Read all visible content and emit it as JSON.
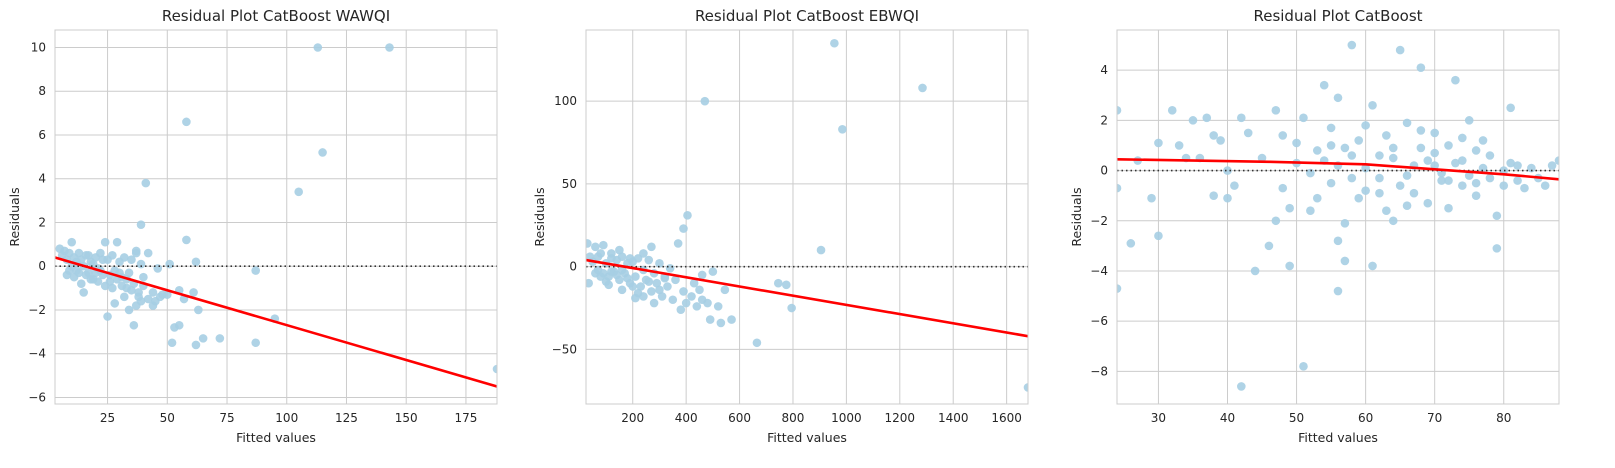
{
  "chart_data": [
    {
      "type": "scatter",
      "title": "Residual Plot CatBoost WAWQI",
      "xlabel": "Fitted values",
      "ylabel": "Residuals",
      "xlim": [
        3,
        188
      ],
      "ylim": [
        -6.3,
        10.8
      ],
      "xticks": [
        25,
        50,
        75,
        100,
        125,
        150,
        175
      ],
      "yticks": [
        -6,
        -4,
        -2,
        0,
        2,
        4,
        6,
        8,
        10
      ],
      "grid": true,
      "point_color": "#a6cee3",
      "fit_color": "#ff0000",
      "zero_line": 0,
      "fit_line": [
        [
          3,
          0.4
        ],
        [
          188,
          -5.5
        ]
      ],
      "points": [
        [
          5,
          0.8
        ],
        [
          6,
          0.5
        ],
        [
          7,
          0.7
        ],
        [
          8,
          0.3
        ],
        [
          9,
          0.6
        ],
        [
          10,
          1.1
        ],
        [
          11,
          0.4
        ],
        [
          12,
          -0.2
        ],
        [
          13,
          0.6
        ],
        [
          14,
          0.3
        ],
        [
          15,
          0.0
        ],
        [
          16,
          0.5
        ],
        [
          17,
          -0.3
        ],
        [
          18,
          0.2
        ],
        [
          19,
          -0.6
        ],
        [
          20,
          0.4
        ],
        [
          21,
          -0.1
        ],
        [
          22,
          0.6
        ],
        [
          23,
          -0.4
        ],
        [
          24,
          1.1
        ],
        [
          25,
          0.3
        ],
        [
          26,
          -0.7
        ],
        [
          27,
          0.5
        ],
        [
          28,
          -0.2
        ],
        [
          29,
          1.1
        ],
        [
          30,
          0.2
        ],
        [
          31,
          -0.5
        ],
        [
          32,
          0.4
        ],
        [
          33,
          -1.0
        ],
        [
          34,
          -0.3
        ],
        [
          35,
          0.3
        ],
        [
          36,
          -0.8
        ],
        [
          37,
          0.6
        ],
        [
          38,
          -1.2
        ],
        [
          39,
          0.1
        ],
        [
          40,
          -0.5
        ],
        [
          42,
          -1.5
        ],
        [
          44,
          -1.2
        ],
        [
          46,
          -0.1
        ],
        [
          48,
          -1.3
        ],
        [
          8,
          -0.4
        ],
        [
          9,
          -0.2
        ],
        [
          10,
          0.0
        ],
        [
          11,
          -0.5
        ],
        [
          12,
          0.2
        ],
        [
          13,
          -0.3
        ],
        [
          14,
          -0.8
        ],
        [
          15,
          -1.2
        ],
        [
          16,
          -0.4
        ],
        [
          17,
          0.5
        ],
        [
          18,
          -0.6
        ],
        [
          19,
          0.1
        ],
        [
          20,
          -0.3
        ],
        [
          21,
          -0.7
        ],
        [
          22,
          -0.2
        ],
        [
          23,
          0.3
        ],
        [
          24,
          -0.9
        ],
        [
          26,
          -0.4
        ],
        [
          27,
          -1.0
        ],
        [
          28,
          -1.7
        ],
        [
          29,
          -0.6
        ],
        [
          30,
          -0.3
        ],
        [
          31,
          -0.9
        ],
        [
          32,
          -1.4
        ],
        [
          33,
          -0.6
        ],
        [
          34,
          -2.0
        ],
        [
          35,
          -1.1
        ],
        [
          36,
          -2.7
        ],
        [
          37,
          -1.8
        ],
        [
          38,
          -1.4
        ],
        [
          39,
          -1.6
        ],
        [
          40,
          -0.9
        ],
        [
          41,
          3.8
        ],
        [
          39,
          1.9
        ],
        [
          37,
          0.7
        ],
        [
          42,
          0.6
        ],
        [
          44,
          -1.8
        ],
        [
          45,
          -1.6
        ],
        [
          47,
          -1.4
        ],
        [
          50,
          -1.3
        ],
        [
          51,
          0.1
        ],
        [
          52,
          -3.5
        ],
        [
          53,
          -2.8
        ],
        [
          55,
          -2.7
        ],
        [
          55,
          -1.1
        ],
        [
          57,
          -1.5
        ],
        [
          58,
          6.6
        ],
        [
          58,
          1.2
        ],
        [
          61,
          -1.2
        ],
        [
          62,
          -3.6
        ],
        [
          62,
          0.2
        ],
        [
          63,
          -2.0
        ],
        [
          65,
          -3.3
        ],
        [
          72,
          -3.3
        ],
        [
          87,
          -0.2
        ],
        [
          87,
          -3.5
        ],
        [
          95,
          -2.4
        ],
        [
          105,
          3.4
        ],
        [
          113,
          10.0
        ],
        [
          115,
          5.2
        ],
        [
          143,
          10.0
        ],
        [
          188,
          -4.7
        ],
        [
          25,
          -2.3
        ]
      ]
    },
    {
      "type": "scatter",
      "title": "Residual Plot CatBoost EBWQI",
      "xlabel": "Fitted values",
      "ylabel": "Residuals",
      "xlim": [
        25,
        1680
      ],
      "ylim": [
        -83,
        143
      ],
      "xticks": [
        200,
        400,
        600,
        800,
        1000,
        1200,
        1400,
        1600
      ],
      "yticks": [
        -50,
        0,
        50,
        100
      ],
      "grid": true,
      "point_color": "#a6cee3",
      "fit_color": "#ff0000",
      "zero_line": 0,
      "fit_line": [
        [
          25,
          4
        ],
        [
          1680,
          -42
        ]
      ],
      "points": [
        [
          30,
          14
        ],
        [
          40,
          6
        ],
        [
          50,
          3
        ],
        [
          60,
          12
        ],
        [
          70,
          -2
        ],
        [
          80,
          8
        ],
        [
          90,
          13
        ],
        [
          100,
          2
        ],
        [
          110,
          -6
        ],
        [
          120,
          8
        ],
        [
          130,
          -3
        ],
        [
          140,
          4
        ],
        [
          150,
          -8
        ],
        [
          160,
          6
        ],
        [
          170,
          -4
        ],
        [
          180,
          2
        ],
        [
          190,
          -10
        ],
        [
          200,
          3
        ],
        [
          210,
          -6
        ],
        [
          220,
          5
        ],
        [
          230,
          -12
        ],
        [
          240,
          -2
        ],
        [
          250,
          -8
        ],
        [
          260,
          4
        ],
        [
          270,
          -15
        ],
        [
          280,
          -4
        ],
        [
          290,
          -10
        ],
        [
          300,
          2
        ],
        [
          310,
          -18
        ],
        [
          320,
          -7
        ],
        [
          330,
          -12
        ],
        [
          340,
          -1
        ],
        [
          350,
          -20
        ],
        [
          360,
          -8
        ],
        [
          380,
          -26
        ],
        [
          390,
          -15
        ],
        [
          400,
          -22
        ],
        [
          420,
          -18
        ],
        [
          440,
          -24
        ],
        [
          460,
          -20
        ],
        [
          60,
          -4
        ],
        [
          80,
          -6
        ],
        [
          100,
          -9
        ],
        [
          120,
          -3
        ],
        [
          140,
          -5
        ],
        [
          160,
          -2
        ],
        [
          180,
          -7
        ],
        [
          200,
          -12
        ],
        [
          220,
          -16
        ],
        [
          240,
          -18
        ],
        [
          260,
          -9
        ],
        [
          280,
          -22
        ],
        [
          300,
          -14
        ],
        [
          320,
          -6
        ],
        [
          270,
          12
        ],
        [
          240,
          8
        ],
        [
          190,
          5
        ],
        [
          150,
          10
        ],
        [
          120,
          5
        ],
        [
          90,
          -4
        ],
        [
          70,
          6
        ],
        [
          370,
          14
        ],
        [
          390,
          23
        ],
        [
          405,
          31
        ],
        [
          430,
          -10
        ],
        [
          450,
          -14
        ],
        [
          460,
          -5
        ],
        [
          480,
          -22
        ],
        [
          490,
          -32
        ],
        [
          500,
          -3
        ],
        [
          520,
          -24
        ],
        [
          530,
          -34
        ],
        [
          545,
          -14
        ],
        [
          570,
          -32
        ],
        [
          470,
          100
        ],
        [
          665,
          -46
        ],
        [
          745,
          -10
        ],
        [
          775,
          -11
        ],
        [
          795,
          -25
        ],
        [
          905,
          10
        ],
        [
          955,
          135
        ],
        [
          985,
          83
        ],
        [
          1285,
          108
        ],
        [
          1680,
          -73
        ],
        [
          35,
          -10
        ],
        [
          110,
          -11
        ],
        [
          160,
          -14
        ],
        [
          210,
          -19
        ]
      ]
    },
    {
      "type": "scatter",
      "title": "Residual Plot CatBoost",
      "xlabel": "Fitted values",
      "ylabel": "Residuals",
      "xlim": [
        24,
        88
      ],
      "ylim": [
        -9.3,
        5.6
      ],
      "xticks": [
        30,
        40,
        50,
        60,
        70,
        80
      ],
      "yticks": [
        -8,
        -6,
        -4,
        -2,
        0,
        2,
        4
      ],
      "grid": true,
      "point_color": "#a6cee3",
      "fit_color": "#ff0000",
      "zero_line": 0,
      "fit_line": [
        [
          24,
          0.45
        ],
        [
          46,
          0.35
        ],
        [
          60,
          0.25
        ],
        [
          70,
          0.05
        ],
        [
          80,
          -0.15
        ],
        [
          88,
          -0.35
        ]
      ],
      "points": [
        [
          24,
          2.4
        ],
        [
          24,
          -0.7
        ],
        [
          24,
          -4.7
        ],
        [
          26,
          -2.9
        ],
        [
          27,
          0.4
        ],
        [
          29,
          -1.1
        ],
        [
          30,
          1.1
        ],
        [
          30,
          -2.6
        ],
        [
          32,
          2.4
        ],
        [
          33,
          1.0
        ],
        [
          34,
          0.5
        ],
        [
          35,
          2.0
        ],
        [
          36,
          0.5
        ],
        [
          37,
          2.1
        ],
        [
          38,
          1.4
        ],
        [
          38,
          -1.0
        ],
        [
          39,
          1.2
        ],
        [
          40,
          0.0
        ],
        [
          40,
          -1.1
        ],
        [
          41,
          -0.6
        ],
        [
          42,
          2.1
        ],
        [
          42,
          -8.6
        ],
        [
          43,
          1.5
        ],
        [
          44,
          -4.0
        ],
        [
          45,
          0.5
        ],
        [
          46,
          -3.0
        ],
        [
          47,
          2.4
        ],
        [
          47,
          -2.0
        ],
        [
          48,
          -0.7
        ],
        [
          48,
          1.4
        ],
        [
          49,
          -1.5
        ],
        [
          49,
          -3.8
        ],
        [
          50,
          0.3
        ],
        [
          50,
          1.1
        ],
        [
          51,
          -7.8
        ],
        [
          51,
          2.1
        ],
        [
          52,
          -0.1
        ],
        [
          52,
          -1.6
        ],
        [
          53,
          0.8
        ],
        [
          53,
          -1.1
        ],
        [
          54,
          3.4
        ],
        [
          54,
          0.4
        ],
        [
          55,
          -0.5
        ],
        [
          55,
          1.7
        ],
        [
          56,
          -2.8
        ],
        [
          56,
          -4.8
        ],
        [
          56,
          2.9
        ],
        [
          57,
          -2.1
        ],
        [
          57,
          0.9
        ],
        [
          57,
          -3.6
        ],
        [
          58,
          -0.3
        ],
        [
          58,
          5.0
        ],
        [
          59,
          1.2
        ],
        [
          59,
          -1.1
        ],
        [
          60,
          1.8
        ],
        [
          60,
          -0.8
        ],
        [
          61,
          2.6
        ],
        [
          61,
          -3.8
        ],
        [
          62,
          0.6
        ],
        [
          62,
          -0.3
        ],
        [
          63,
          1.4
        ],
        [
          63,
          -1.6
        ],
        [
          64,
          -2.0
        ],
        [
          64,
          0.9
        ],
        [
          65,
          4.8
        ],
        [
          65,
          -0.6
        ],
        [
          66,
          1.9
        ],
        [
          66,
          -1.4
        ],
        [
          67,
          0.2
        ],
        [
          67,
          -0.9
        ],
        [
          68,
          4.1
        ],
        [
          68,
          1.6
        ],
        [
          69,
          0.4
        ],
        [
          69,
          -1.3
        ],
        [
          70,
          1.5
        ],
        [
          70,
          0.7
        ],
        [
          71,
          -0.4
        ],
        [
          71,
          -0.1
        ],
        [
          72,
          1.0
        ],
        [
          72,
          -1.5
        ],
        [
          73,
          3.6
        ],
        [
          73,
          0.3
        ],
        [
          74,
          -0.6
        ],
        [
          74,
          1.3
        ],
        [
          75,
          2.0
        ],
        [
          75,
          -0.2
        ],
        [
          76,
          0.8
        ],
        [
          76,
          -0.5
        ],
        [
          77,
          1.2
        ],
        [
          77,
          0.1
        ],
        [
          78,
          -0.3
        ],
        [
          78,
          0.6
        ],
        [
          79,
          -1.8
        ],
        [
          79,
          -3.1
        ],
        [
          80,
          0.0
        ],
        [
          80,
          -0.6
        ],
        [
          81,
          2.5
        ],
        [
          81,
          0.3
        ],
        [
          82,
          -0.4
        ],
        [
          82,
          0.2
        ],
        [
          83,
          -0.7
        ],
        [
          84,
          0.1
        ],
        [
          85,
          -0.3
        ],
        [
          86,
          -0.6
        ],
        [
          87,
          0.2
        ],
        [
          88,
          0.4
        ],
        [
          55,
          1.0
        ],
        [
          56,
          0.2
        ],
        [
          58,
          0.6
        ],
        [
          60,
          0.1
        ],
        [
          62,
          -0.9
        ],
        [
          64,
          0.5
        ],
        [
          66,
          -0.2
        ],
        [
          68,
          0.9
        ],
        [
          70,
          0.2
        ],
        [
          72,
          -0.4
        ],
        [
          74,
          0.4
        ],
        [
          76,
          -1.0
        ]
      ]
    }
  ]
}
